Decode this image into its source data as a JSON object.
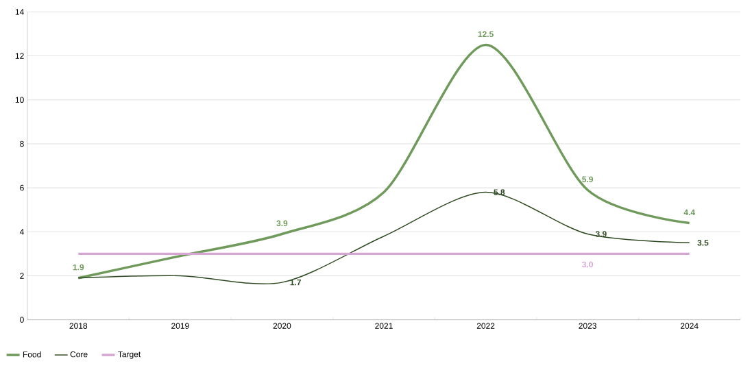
{
  "chart_data": {
    "type": "line",
    "categories": [
      "2018",
      "2019",
      "2020",
      "2021",
      "2022",
      "2023",
      "2024"
    ],
    "series": [
      {
        "name": "Food",
        "color": "#6f9a5b",
        "values": [
          1.9,
          2.9,
          3.9,
          5.8,
          12.5,
          5.9,
          4.4
        ],
        "value_labels": [
          "1.9",
          null,
          "3.9",
          null,
          "12.5",
          "5.9",
          "4.4"
        ]
      },
      {
        "name": "Core",
        "color": "#2e4a22",
        "values": [
          1.9,
          2.0,
          1.7,
          3.8,
          5.8,
          3.9,
          3.5
        ],
        "value_labels": [
          null,
          null,
          "1.7",
          null,
          "5.8",
          "3.9",
          "3.5"
        ]
      },
      {
        "name": "Target",
        "color": "#d5a6d2",
        "values": [
          3.0,
          3.0,
          3.0,
          3.0,
          3.0,
          3.0,
          3.0
        ],
        "value_labels": [
          null,
          null,
          null,
          null,
          null,
          "3.0",
          null
        ]
      }
    ],
    "ylim": [
      0,
      14
    ],
    "yticks": [
      0,
      2,
      4,
      6,
      8,
      10,
      12,
      14
    ],
    "grid": "y",
    "legend": "bottom left",
    "marker": "none",
    "line_style": "solid"
  }
}
